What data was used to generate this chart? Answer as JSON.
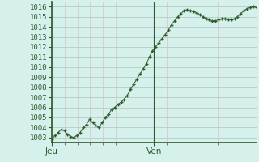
{
  "ylabel_values": [
    1003,
    1004,
    1005,
    1006,
    1007,
    1008,
    1009,
    1010,
    1011,
    1012,
    1013,
    1014,
    1015,
    1016
  ],
  "ylim": [
    1002.5,
    1016.5
  ],
  "xlim": [
    0,
    48
  ],
  "xtick_positions": [
    0,
    24
  ],
  "xtick_labels": [
    "Jeu",
    "Ven"
  ],
  "background_color": "#d6f0ec",
  "line_color": "#2d5e2d",
  "marker_color": "#2d5e2d",
  "axis_color": "#2d5a2d",
  "grid_major_color": "#c0d8d0",
  "grid_minor_color": "#dce8e4",
  "pressure_data": [
    1002.8,
    1003.2,
    1003.5,
    1003.8,
    1003.7,
    1003.3,
    1003.1,
    1003.0,
    1003.2,
    1003.5,
    1004.0,
    1004.3,
    1004.8,
    1004.5,
    1004.2,
    1004.0,
    1004.5,
    1005.0,
    1005.3,
    1005.8,
    1006.0,
    1006.3,
    1006.5,
    1006.8,
    1007.2,
    1007.8,
    1008.3,
    1008.8,
    1009.3,
    1009.8,
    1010.3,
    1011.0,
    1011.6,
    1012.0,
    1012.4,
    1012.8,
    1013.2,
    1013.7,
    1014.2,
    1014.6,
    1015.0,
    1015.3,
    1015.6,
    1015.7,
    1015.6,
    1015.5,
    1015.4,
    1015.2,
    1015.0,
    1014.8,
    1014.7,
    1014.6,
    1014.6,
    1014.7,
    1014.8,
    1014.8,
    1014.7,
    1014.7,
    1014.8,
    1015.0,
    1015.3,
    1015.6,
    1015.8,
    1015.9,
    1016.0,
    1015.9
  ]
}
